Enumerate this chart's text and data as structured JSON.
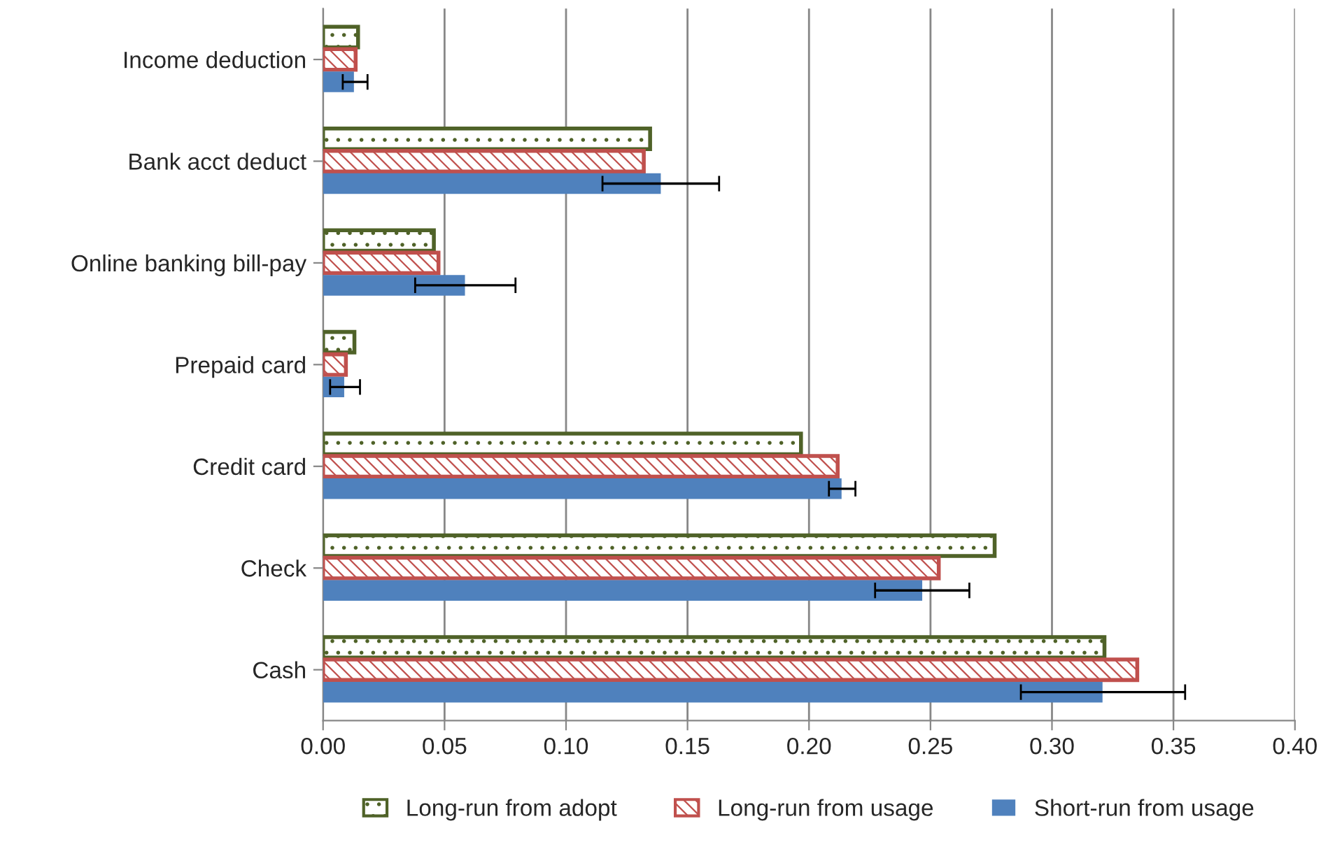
{
  "chart_data": {
    "type": "bar",
    "orientation": "horizontal",
    "categories": [
      "Income deduction",
      "Bank acct deduct",
      "Online banking bill-pay",
      "Prepaid card",
      "Credit card",
      "Check",
      "Cash"
    ],
    "series": [
      {
        "name": "Long-run from adopt",
        "color": "#4f6228",
        "values": [
          0.0144,
          0.1346,
          0.0456,
          0.0129,
          0.1967,
          0.2764,
          0.3216
        ]
      },
      {
        "name": "Long-run from usage",
        "color": "#c0504d",
        "values": [
          0.0134,
          0.132,
          0.0475,
          0.0094,
          0.2118,
          0.2534,
          0.3351
        ]
      },
      {
        "name": "Short-run from usage",
        "color": "#4f81bd",
        "values": [
          0.0127,
          0.139,
          0.0584,
          0.0087,
          0.2134,
          0.2466,
          0.3208
        ],
        "errors": [
          [
            0.0081,
            0.0183
          ],
          [
            0.115,
            0.163
          ],
          [
            0.0379,
            0.0792
          ],
          [
            0.0029,
            0.0152
          ],
          [
            0.2082,
            0.2191
          ],
          [
            0.2272,
            0.266
          ],
          [
            0.2872,
            0.3548
          ]
        ]
      }
    ],
    "xlim": [
      0,
      0.4
    ],
    "xticks": [
      {
        "value": 0,
        "label": "0.00"
      },
      {
        "value": 0.05,
        "label": "0.05"
      },
      {
        "value": 0.1,
        "label": "0.10"
      },
      {
        "value": 0.15,
        "label": "0.15"
      },
      {
        "value": 0.2,
        "label": "0.20"
      },
      {
        "value": 0.25,
        "label": "0.25"
      },
      {
        "value": 0.3,
        "label": "0.30"
      },
      {
        "value": 0.35,
        "label": "0.35"
      },
      {
        "value": 0.4,
        "label": "0.40"
      }
    ],
    "grid": "x",
    "legend": "bottom"
  }
}
